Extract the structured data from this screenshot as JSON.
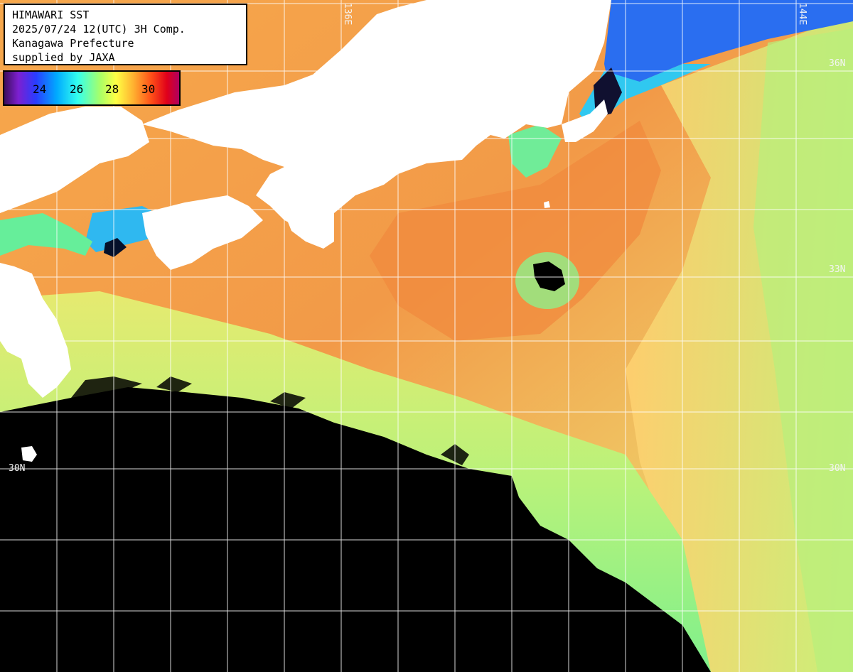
{
  "title": {
    "line1": "HIMAWARI SST",
    "line2": "2025/07/24 12(UTC) 3H Comp.",
    "line3": "Kanagawa Prefecture",
    "line4": "supplied by JAXA"
  },
  "legend": {
    "ticks": [
      "24",
      "26",
      "28",
      "30"
    ],
    "colors": [
      "#3b0f5c",
      "#7d1fd0",
      "#2a3cff",
      "#00aaff",
      "#33ffee",
      "#aaff66",
      "#ffff44",
      "#ffb030",
      "#ff5018",
      "#e0001a",
      "#b00060"
    ]
  },
  "grid": {
    "labels": {
      "lon_136": "136E",
      "lon_144": "144E",
      "lat_36": "36N",
      "lat_33": "33N",
      "lat_30_left": "30N",
      "lat_30_right": "30N"
    }
  },
  "colors": {
    "land": "#ffffff",
    "no_data": "#000000",
    "warm_sea": "#f5a24a",
    "mid_sea": "#ccf07a",
    "cool_sea": "#66ee99",
    "coast_blue": "#2266ee",
    "grid_line": "#ffffff"
  }
}
